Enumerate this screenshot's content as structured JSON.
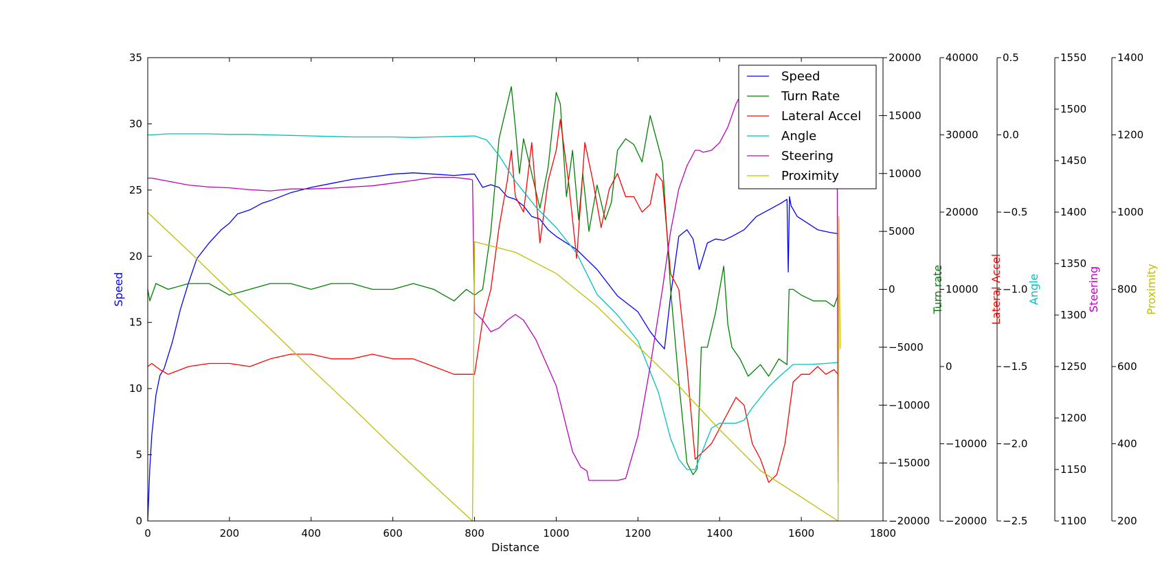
{
  "chart_data": {
    "type": "line",
    "xlabel": "Distance",
    "xlim": [
      0,
      1800
    ],
    "xticks": [
      0,
      200,
      400,
      600,
      800,
      1000,
      1200,
      1400,
      1600,
      1800
    ],
    "legend_position": "top-right",
    "axes": [
      {
        "id": "speed",
        "label": "Speed",
        "color": "#0000ff",
        "ylim": [
          0,
          35
        ],
        "ticks": [
          0,
          5,
          10,
          15,
          20,
          25,
          30,
          35
        ],
        "decimals": 0
      },
      {
        "id": "turn",
        "label": "Turn Rate",
        "color": "#008000",
        "ylim": [
          -20000,
          20000
        ],
        "ticks": [
          -20000,
          -15000,
          -10000,
          -5000,
          0,
          5000,
          10000,
          15000,
          20000
        ],
        "decimals": 0
      },
      {
        "id": "turn2",
        "label": "Turn rate",
        "color": "#008000",
        "ylim": [
          -20000,
          40000
        ],
        "ticks": [
          -20000,
          -10000,
          0,
          10000,
          20000,
          30000,
          40000
        ],
        "decimals": 0
      },
      {
        "id": "lat",
        "label": "Lateral Accel",
        "color": "#ff0000",
        "ylim": [
          -2.5,
          0.5
        ],
        "ticks": [
          -2.5,
          -2.0,
          -1.5,
          -1.0,
          -0.5,
          0.0,
          0.5
        ],
        "decimals": 1
      },
      {
        "id": "angle",
        "label": "Angle",
        "color": "#00bfbf",
        "ylim": [
          1100,
          1550
        ],
        "ticks": [
          1100,
          1150,
          1200,
          1250,
          1300,
          1350,
          1400,
          1450,
          1500,
          1550
        ],
        "decimals": 0
      },
      {
        "id": "steer",
        "label": "Steering",
        "color": "#bf00bf",
        "ylim": [
          200,
          1400
        ],
        "ticks": [
          200,
          400,
          600,
          800,
          1000,
          1200,
          1400
        ],
        "decimals": 0
      },
      {
        "id": "prox",
        "label": "Proximity",
        "color": "#bfbf00",
        "ylim": null,
        "ticks": [],
        "decimals": 0
      }
    ],
    "series": [
      {
        "name": "Speed",
        "color": "#0000ff",
        "axis": "speed",
        "x": [
          0,
          5,
          10,
          20,
          30,
          40,
          60,
          80,
          100,
          120,
          150,
          180,
          200,
          220,
          250,
          280,
          300,
          350,
          400,
          450,
          500,
          550,
          600,
          650,
          700,
          750,
          790,
          800,
          820,
          840,
          860,
          880,
          900,
          920,
          940,
          960,
          980,
          1000,
          1050,
          1100,
          1150,
          1200,
          1230,
          1250,
          1265,
          1280,
          1300,
          1320,
          1335,
          1350,
          1370,
          1390,
          1410,
          1430,
          1460,
          1490,
          1520,
          1550,
          1565,
          1568,
          1571,
          1575,
          1590,
          1610,
          1640,
          1670,
          1690
        ],
        "y": [
          0,
          4,
          6.5,
          9.5,
          11,
          11.5,
          13.5,
          16,
          18,
          19.8,
          21,
          22,
          22.5,
          23.2,
          23.5,
          24,
          24.2,
          24.8,
          25.2,
          25.5,
          25.8,
          26,
          26.2,
          26.3,
          26.2,
          26.1,
          26.2,
          26.2,
          25.2,
          25.4,
          25.2,
          24.5,
          24.3,
          23.8,
          23,
          22.8,
          22,
          21.5,
          20.5,
          19,
          17,
          15.8,
          14.3,
          13.5,
          13,
          17,
          21.5,
          22,
          21.3,
          19,
          21,
          21.3,
          21.2,
          21.5,
          22,
          23,
          23.5,
          24,
          24.3,
          18.8,
          24.5,
          23.8,
          23,
          22.6,
          22,
          21.8,
          21.7
        ]
      },
      {
        "name": "Turn Rate",
        "color": "#008000",
        "axis": "turn",
        "x": [
          0,
          5,
          20,
          50,
          100,
          150,
          200,
          250,
          300,
          350,
          400,
          450,
          500,
          550,
          600,
          650,
          700,
          750,
          780,
          800,
          820,
          840,
          860,
          880,
          890,
          900,
          910,
          920,
          940,
          960,
          980,
          1000,
          1010,
          1025,
          1040,
          1055,
          1065,
          1080,
          1100,
          1120,
          1135,
          1150,
          1170,
          1190,
          1210,
          1230,
          1245,
          1260,
          1280,
          1300,
          1320,
          1335,
          1345,
          1355,
          1370,
          1390,
          1410,
          1420,
          1430,
          1450,
          1470,
          1500,
          1520,
          1545,
          1565,
          1570,
          1580,
          1600,
          1630,
          1660,
          1680,
          1690
        ],
        "y": [
          0,
          -1000,
          500,
          0,
          500,
          500,
          -500,
          0,
          500,
          500,
          0,
          500,
          500,
          0,
          0,
          500,
          0,
          -1000,
          0,
          -500,
          0,
          5000,
          13000,
          16000,
          17500,
          14000,
          10000,
          13000,
          10000,
          7000,
          10500,
          17000,
          16000,
          8000,
          12000,
          6000,
          10000,
          5000,
          9000,
          6000,
          7500,
          12000,
          13000,
          12500,
          11000,
          15000,
          13000,
          11000,
          0,
          -8000,
          -15000,
          -16000,
          -15500,
          -5000,
          -5000,
          -2000,
          2000,
          -3000,
          -5000,
          -6000,
          -7500,
          -6500,
          -7500,
          -6000,
          -6500,
          0,
          0,
          -500,
          -1000,
          -1000,
          -1500,
          -500
        ]
      },
      {
        "name": "Lateral Accel",
        "color": "#ff0000",
        "axis": "lat",
        "x": [
          0,
          10,
          30,
          50,
          100,
          150,
          200,
          250,
          300,
          350,
          400,
          450,
          500,
          550,
          600,
          650,
          700,
          750,
          790,
          800,
          820,
          840,
          860,
          880,
          890,
          900,
          920,
          940,
          960,
          980,
          1000,
          1010,
          1030,
          1050,
          1070,
          1090,
          1110,
          1130,
          1150,
          1170,
          1190,
          1210,
          1230,
          1245,
          1260,
          1280,
          1300,
          1320,
          1340,
          1360,
          1380,
          1400,
          1420,
          1440,
          1460,
          1480,
          1500,
          1520,
          1540,
          1560,
          1580,
          1600,
          1620,
          1640,
          1660,
          1680,
          1690
        ],
        "y": [
          -1.5,
          -1.48,
          -1.52,
          -1.55,
          -1.5,
          -1.48,
          -1.48,
          -1.5,
          -1.45,
          -1.42,
          -1.42,
          -1.45,
          -1.45,
          -1.42,
          -1.45,
          -1.45,
          -1.5,
          -1.55,
          -1.55,
          -1.55,
          -1.2,
          -1.0,
          -0.6,
          -0.3,
          -0.1,
          -0.4,
          -0.5,
          -0.05,
          -0.7,
          -0.3,
          -0.1,
          0.1,
          -0.3,
          -0.8,
          -0.05,
          -0.3,
          -0.6,
          -0.35,
          -0.25,
          -0.4,
          -0.4,
          -0.5,
          -0.45,
          -0.25,
          -0.3,
          -0.9,
          -1.0,
          -1.5,
          -2.1,
          -2.05,
          -2.0,
          -1.9,
          -1.8,
          -1.7,
          -1.75,
          -2.0,
          -2.1,
          -2.25,
          -2.2,
          -2.0,
          -1.6,
          -1.55,
          -1.55,
          -1.5,
          -1.55,
          -1.52,
          -1.55
        ]
      },
      {
        "name": "Angle",
        "color": "#00bfbf",
        "axis": "angle",
        "x": [
          0,
          10,
          50,
          100,
          150,
          200,
          250,
          300,
          350,
          400,
          450,
          500,
          550,
          600,
          650,
          700,
          750,
          800,
          830,
          860,
          900,
          950,
          1000,
          1050,
          1100,
          1150,
          1200,
          1250,
          1280,
          1300,
          1320,
          1340,
          1360,
          1380,
          1400,
          1420,
          1440,
          1460,
          1480,
          1500,
          1520,
          1540,
          1560,
          1580,
          1620,
          1660,
          1690
        ],
        "y": [
          1475,
          1475,
          1476,
          1476,
          1476,
          1475.5,
          1475.5,
          1475,
          1474.5,
          1474,
          1473.5,
          1473,
          1473,
          1473,
          1472.5,
          1473,
          1473.5,
          1474,
          1470,
          1455,
          1430,
          1405,
          1385,
          1360,
          1320,
          1300,
          1275,
          1225,
          1180,
          1160,
          1150,
          1150,
          1170,
          1190,
          1195,
          1195,
          1195,
          1198,
          1210,
          1220,
          1230,
          1238,
          1245,
          1252,
          1252,
          1253,
          1254
        ]
      },
      {
        "name": "Steering",
        "color": "#bf00bf",
        "axis": "steer",
        "x": [
          0,
          10,
          50,
          100,
          150,
          200,
          250,
          300,
          350,
          400,
          450,
          500,
          550,
          600,
          650,
          700,
          750,
          790,
          795,
          800,
          820,
          840,
          860,
          880,
          900,
          920,
          950,
          1000,
          1040,
          1060,
          1075,
          1080,
          1100,
          1150,
          1170,
          1200,
          1230,
          1260,
          1280,
          1300,
          1320,
          1340,
          1350,
          1360,
          1380,
          1400,
          1420,
          1440,
          1460,
          1480,
          1500,
          1520,
          1540,
          1560,
          1580,
          1600,
          1640,
          1680,
          1688,
          1690
        ],
        "y": [
          1088,
          1088,
          1080,
          1070,
          1065,
          1063,
          1058,
          1055,
          1060,
          1060,
          1062,
          1065,
          1068,
          1075,
          1082,
          1090,
          1090,
          1085,
          1083,
          740,
          720,
          690,
          700,
          720,
          735,
          720,
          670,
          550,
          380,
          340,
          330,
          305,
          305,
          305,
          310,
          420,
          600,
          800,
          950,
          1060,
          1120,
          1160,
          1160,
          1155,
          1160,
          1180,
          1220,
          1280,
          1320,
          1330,
          1340,
          1345,
          1350,
          1355,
          1360,
          1370,
          1380,
          1370,
          1100,
          300
        ]
      },
      {
        "name": "Proximity",
        "color": "#bfbf00",
        "axis": "speed",
        "x": [
          0,
          100,
          200,
          300,
          400,
          500,
          600,
          700,
          795,
          800,
          900,
          1000,
          1100,
          1200,
          1300,
          1400,
          1500,
          1600,
          1690,
          1692,
          1695
        ],
        "y": [
          23.3,
          20.4,
          17.4,
          14.5,
          11.5,
          8.6,
          5.6,
          2.7,
          0.0,
          21.1,
          20.3,
          18.7,
          16.2,
          13.2,
          10.2,
          6.9,
          3.8,
          1.8,
          0.0,
          23.0,
          13.0
        ]
      }
    ]
  }
}
